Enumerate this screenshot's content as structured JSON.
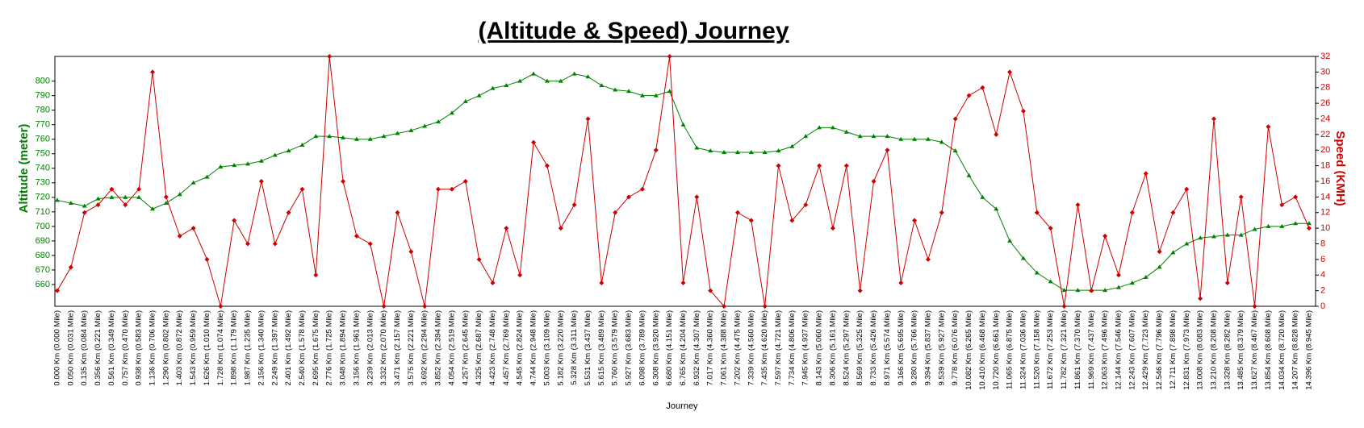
{
  "chart_data": {
    "type": "line",
    "title": "(Altitude & Speed) Journey",
    "x_label": "Journey",
    "y_label": "Altitude (meter)",
    "y2_label": "Speed (KMH)",
    "categories": [
      "0.000 Km (0.000 Mile)",
      "0.050 Km (0.031 Mile)",
      "0.135 Km (0.084 Mile)",
      "0.356 Km (0.221 Mile)",
      "0.561 Km (0.349 Mile)",
      "0.757 Km (0.470 Mile)",
      "0.938 Km (0.583 Mile)",
      "1.136 Km (0.706 Mile)",
      "1.290 Km (0.802 Mile)",
      "1.403 Km (0.872 Mile)",
      "1.543 Km (0.959 Mile)",
      "1.626 Km (1.010 Mile)",
      "1.728 Km (1.074 Mile)",
      "1.898 Km (1.179 Mile)",
      "1.987 Km (1.235 Mile)",
      "2.156 Km (1.340 Mile)",
      "2.249 Km (1.397 Mile)",
      "2.401 Km (1.492 Mile)",
      "2.540 Km (1.578 Mile)",
      "2.695 Km (1.675 Mile)",
      "2.776 Km (1.725 Mile)",
      "3.048 Km (1.894 Mile)",
      "3.156 Km (1.961 Mile)",
      "3.239 Km (2.013 Mile)",
      "3.332 Km (2.070 Mile)",
      "3.471 Km (2.157 Mile)",
      "3.575 Km (2.221 Mile)",
      "3.692 Km (2.294 Mile)",
      "3.852 Km (2.394 Mile)",
      "4.054 Km (2.519 Mile)",
      "4.257 Km (2.645 Mile)",
      "4.325 Km (2.687 Mile)",
      "4.423 Km (2.748 Mile)",
      "4.457 Km (2.769 Mile)",
      "4.545 Km (2.824 Mile)",
      "4.744 Km (2.948 Mile)",
      "5.003 Km (3.109 Mile)",
      "5.182 Km (3.220 Mile)",
      "5.328 Km (3.311 Mile)",
      "5.531 Km (3.437 Mile)",
      "5.615 Km (3.489 Mile)",
      "5.760 Km (3.579 Mile)",
      "5.927 Km (3.683 Mile)",
      "6.098 Km (3.789 Mile)",
      "6.308 Km (3.920 Mile)",
      "6.680 Km (4.151 Mile)",
      "6.765 Km (4.204 Mile)",
      "6.932 Km (4.307 Mile)",
      "7.017 Km (4.360 Mile)",
      "7.061 Km (4.388 Mile)",
      "7.202 Km (4.475 Mile)",
      "7.339 Km (4.560 Mile)",
      "7.435 Km (4.620 Mile)",
      "7.597 Km (4.721 Mile)",
      "7.734 Km (4.806 Mile)",
      "7.945 Km (4.937 Mile)",
      "8.143 Km (5.060 Mile)",
      "8.306 Km (5.161 Mile)",
      "8.524 Km (5.297 Mile)",
      "8.569 Km (5.325 Mile)",
      "8.733 Km (5.426 Mile)",
      "8.971 Km (5.574 Mile)",
      "9.166 Km (5.695 Mile)",
      "9.280 Km (5.766 Mile)",
      "9.394 Km (5.837 Mile)",
      "9.539 Km (5.927 Mile)",
      "9.778 Km (6.076 Mile)",
      "10.082 Km (6.265 Mile)",
      "10.410 Km (6.468 Mile)",
      "10.720 Km (6.661 Mile)",
      "11.065 Km (6.875 Mile)",
      "11.324 Km (7.036 Mile)",
      "11.520 Km (7.158 Mile)",
      "11.672 Km (7.253 Mile)",
      "11.782 Km (7.321 Mile)",
      "11.861 Km (7.370 Mile)",
      "11.969 Km (7.437 Mile)",
      "12.063 Km (7.496 Mile)",
      "12.144 Km (7.546 Mile)",
      "12.243 Km (7.607 Mile)",
      "12.429 Km (7.723 Mile)",
      "12.546 Km (7.796 Mile)",
      "12.711 Km (7.898 Mile)",
      "12.831 Km (7.973 Mile)",
      "13.008 Km (8.083 Mile)",
      "13.210 Km (8.208 Mile)",
      "13.328 Km (8.282 Mile)",
      "13.485 Km (8.379 Mile)",
      "13.627 Km (8.467 Mile)",
      "13.854 Km (8.608 Mile)",
      "14.034 Km (8.720 Mile)",
      "14.207 Km (8.828 Mile)",
      "14.396 Km (8.945 Mile)"
    ],
    "series": [
      {
        "color": "#008000",
        "marker": "triangle",
        "axis": "y",
        "values": [
          718,
          716,
          714,
          719,
          720,
          720,
          720,
          712,
          716,
          722,
          730,
          734,
          741,
          742,
          743,
          745,
          749,
          752,
          756,
          762,
          762,
          761,
          760,
          760,
          762,
          764,
          766,
          769,
          772,
          778,
          786,
          790,
          795,
          797,
          800,
          805,
          800,
          800,
          805,
          803,
          797,
          794,
          793,
          790,
          790,
          793,
          770,
          754,
          752,
          751,
          751,
          751,
          751,
          752,
          755,
          762,
          768,
          768,
          765,
          762,
          762,
          762,
          760,
          760,
          760,
          758,
          752,
          735,
          720,
          712,
          690,
          678,
          668,
          662,
          656,
          656,
          656,
          656,
          658,
          661,
          665,
          672,
          682,
          688,
          692,
          693,
          694,
          694,
          698,
          700,
          700,
          702,
          702
        ]
      },
      {
        "color": "#cc0000",
        "marker": "diamond",
        "axis": "y2",
        "values": [
          2,
          5,
          12,
          13,
          15,
          13,
          15,
          30,
          14,
          9,
          10,
          6,
          0,
          11,
          8,
          16,
          8,
          12,
          15,
          4,
          32,
          16,
          9,
          8,
          0,
          12,
          7,
          0,
          15,
          15,
          16,
          6,
          3,
          10,
          4,
          21,
          18,
          10,
          13,
          24,
          3,
          12,
          14,
          15,
          20,
          32,
          3,
          14,
          2,
          0,
          12,
          11,
          0,
          18,
          11,
          13,
          18,
          10,
          18,
          2,
          16,
          20,
          3,
          11,
          6,
          12,
          24,
          27,
          28,
          22,
          30,
          25,
          12,
          10,
          0,
          13,
          2,
          9,
          4,
          12,
          17,
          7,
          12,
          15,
          1,
          24,
          3,
          14,
          0,
          23,
          13,
          14,
          10
        ]
      }
    ],
    "ylim": [
      645,
      817
    ],
    "yticks": [
      660,
      670,
      680,
      690,
      700,
      710,
      720,
      730,
      740,
      750,
      760,
      770,
      780,
      790,
      800
    ],
    "y2lim": [
      0,
      32
    ],
    "y2ticks": [
      0,
      2,
      4,
      6,
      8,
      10,
      12,
      14,
      16,
      18,
      20,
      22,
      24,
      26,
      28,
      30,
      32
    ],
    "y_color": "#008000",
    "y2_color": "#cc0000"
  }
}
